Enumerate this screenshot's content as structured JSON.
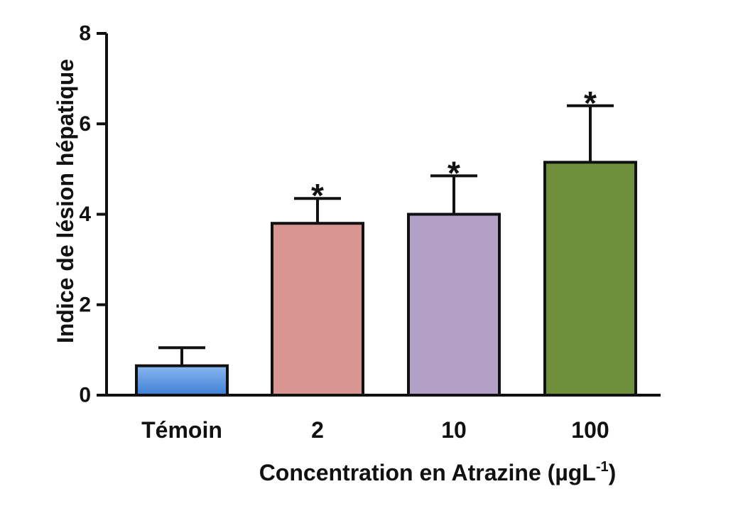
{
  "chart_data": {
    "type": "bar",
    "xlabel_main": "Concentration en Atrazine (µgL",
    "xlabel_sup": "-1",
    "xlabel_close": ")",
    "ylabel": "Indice de lésion hépatique",
    "ylim": [
      0,
      8
    ],
    "yticks": [
      0,
      2,
      4,
      6,
      8
    ],
    "grid": false,
    "categories": [
      "Témoin",
      "2",
      "10",
      "100"
    ],
    "values": [
      0.65,
      3.8,
      4.0,
      5.15
    ],
    "errors": [
      0.4,
      0.55,
      0.85,
      1.25
    ],
    "significance": [
      "",
      "*",
      "*",
      "*"
    ],
    "colors": [
      "#5b95e0",
      "#d99592",
      "#b2a0c6",
      "#6f8f3c"
    ]
  }
}
